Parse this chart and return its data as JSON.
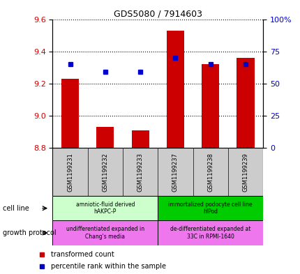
{
  "title": "GDS5080 / 7914603",
  "samples": [
    "GSM1199231",
    "GSM1199232",
    "GSM1199233",
    "GSM1199237",
    "GSM1199238",
    "GSM1199239"
  ],
  "red_values": [
    9.23,
    8.93,
    8.91,
    9.53,
    9.32,
    9.36
  ],
  "blue_pct": [
    65,
    59,
    59,
    70,
    65,
    65
  ],
  "red_base": 8.8,
  "ylim_left": [
    8.8,
    9.6
  ],
  "ylim_right": [
    0,
    100
  ],
  "yticks_left": [
    8.8,
    9.0,
    9.2,
    9.4,
    9.6
  ],
  "yticks_right": [
    0,
    25,
    50,
    75,
    100
  ],
  "ytick_labels_right": [
    "0",
    "25",
    "50",
    "75",
    "100%"
  ],
  "cell_line_groups": [
    {
      "label": "amniotic-fluid derived\nhAKPC-P",
      "start": 0,
      "end": 3,
      "color": "#ccffcc"
    },
    {
      "label": "immortalized podocyte cell line\nhIPod",
      "start": 3,
      "end": 6,
      "color": "#00cc00"
    }
  ],
  "growth_protocol_groups": [
    {
      "label": "undifferentiated expanded in\nChang's media",
      "start": 0,
      "end": 3,
      "color": "#ee77ee"
    },
    {
      "label": "de-differentiated expanded at\n33C in RPMI-1640",
      "start": 3,
      "end": 6,
      "color": "#ee77ee"
    }
  ],
  "cell_line_label": "cell line",
  "growth_protocol_label": "growth protocol",
  "legend_red": "transformed count",
  "legend_blue": "percentile rank within the sample",
  "bar_color": "#cc0000",
  "dot_color": "#0000cc",
  "left_color": "#cc0000",
  "right_color": "#0000cc",
  "sample_bg": "#cccccc"
}
